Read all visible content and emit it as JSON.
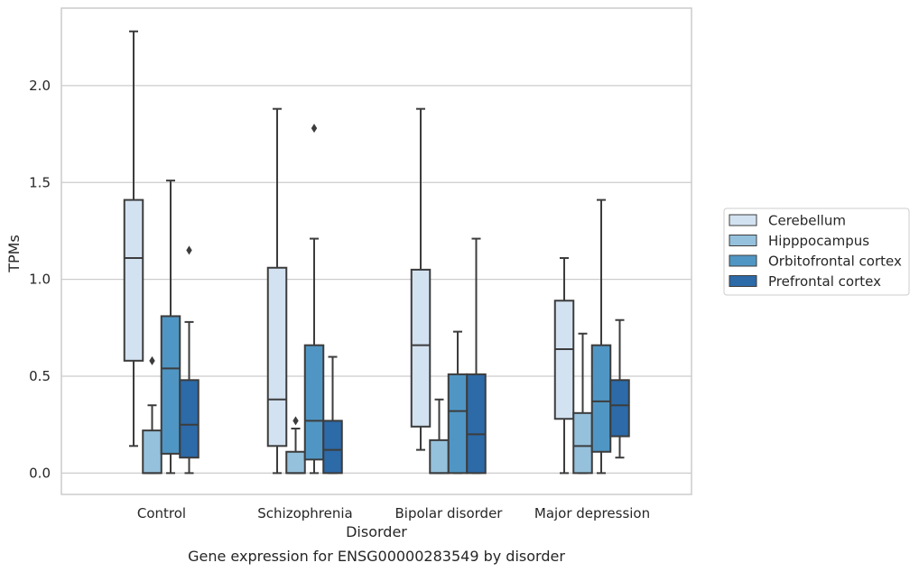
{
  "chart_data": {
    "type": "box",
    "caption": "Gene expression for ENSG00000283549 by disorder",
    "xlabel": "Disorder",
    "ylabel": "TPMs",
    "ylim": [
      -0.11,
      2.4
    ],
    "yticks": [
      "0.0",
      "0.5",
      "1.0",
      "1.5",
      "2.0"
    ],
    "ytick_values": [
      0,
      0.5,
      1.0,
      1.5,
      2.0
    ],
    "grid": "horizontal",
    "legend_position": "right",
    "categories": [
      "Control",
      "Schizophrenia",
      "Bipolar disorder",
      "Major depression"
    ],
    "series": [
      {
        "name": "Cerebellum",
        "color": "#d3e2f1",
        "boxes": [
          {
            "whislo": 0.14,
            "q1": 0.58,
            "med": 1.11,
            "q3": 1.41,
            "whishi": 2.28,
            "fliers": []
          },
          {
            "whislo": 0.0,
            "q1": 0.14,
            "med": 0.38,
            "q3": 1.06,
            "whishi": 1.88,
            "fliers": []
          },
          {
            "whislo": 0.12,
            "q1": 0.24,
            "med": 0.66,
            "q3": 1.05,
            "whishi": 1.88,
            "fliers": []
          },
          {
            "whislo": 0.0,
            "q1": 0.28,
            "med": 0.64,
            "q3": 0.89,
            "whishi": 1.11,
            "fliers": []
          }
        ]
      },
      {
        "name": "Hipppocampus",
        "color": "#95c1dc",
        "boxes": [
          {
            "whislo": 0.0,
            "q1": 0.0,
            "med": 0.0,
            "q3": 0.22,
            "whishi": 0.35,
            "fliers": [
              0.58
            ]
          },
          {
            "whislo": 0.0,
            "q1": 0.0,
            "med": 0.0,
            "q3": 0.11,
            "whishi": 0.23,
            "fliers": [
              0.27
            ]
          },
          {
            "whislo": 0.0,
            "q1": 0.0,
            "med": 0.0,
            "q3": 0.17,
            "whishi": 0.38,
            "fliers": []
          },
          {
            "whislo": 0.0,
            "q1": 0.0,
            "med": 0.14,
            "q3": 0.31,
            "whishi": 0.72,
            "fliers": []
          }
        ]
      },
      {
        "name": "Orbitofrontal cortex",
        "color": "#5096c4",
        "boxes": [
          {
            "whislo": 0.0,
            "q1": 0.1,
            "med": 0.54,
            "q3": 0.81,
            "whishi": 1.51,
            "fliers": []
          },
          {
            "whislo": 0.0,
            "q1": 0.07,
            "med": 0.27,
            "q3": 0.66,
            "whishi": 1.21,
            "fliers": [
              1.78
            ]
          },
          {
            "whislo": 0.0,
            "q1": 0.0,
            "med": 0.32,
            "q3": 0.51,
            "whishi": 0.73,
            "fliers": []
          },
          {
            "whislo": 0.0,
            "q1": 0.11,
            "med": 0.37,
            "q3": 0.66,
            "whishi": 1.41,
            "fliers": []
          }
        ]
      },
      {
        "name": "Prefrontal cortex",
        "color": "#2c6aa8",
        "boxes": [
          {
            "whislo": 0.0,
            "q1": 0.08,
            "med": 0.25,
            "q3": 0.48,
            "whishi": 0.78,
            "fliers": [
              1.15
            ]
          },
          {
            "whislo": 0.0,
            "q1": 0.0,
            "med": 0.12,
            "q3": 0.27,
            "whishi": 0.6,
            "fliers": []
          },
          {
            "whislo": 0.0,
            "q1": 0.0,
            "med": 0.2,
            "q3": 0.51,
            "whishi": 1.21,
            "fliers": []
          },
          {
            "whislo": 0.08,
            "q1": 0.19,
            "med": 0.35,
            "q3": 0.48,
            "whishi": 0.79,
            "fliers": []
          }
        ]
      }
    ]
  },
  "style": {
    "line_color": "#3c3c3c",
    "grid_color": "#cccccc",
    "frame_color": "#cccccc"
  }
}
